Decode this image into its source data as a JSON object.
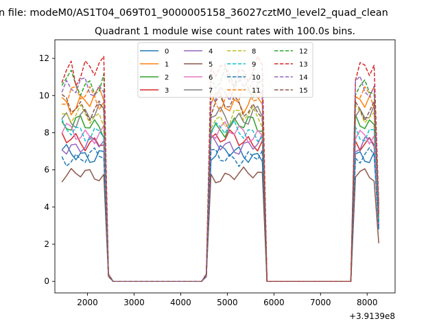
{
  "figure": {
    "suptitle": "n file: modeM0/AS1T04_069T01_9000005158_36027cztM0_level2_quad_clean",
    "offset_label": "+3.9139e8"
  },
  "chart_data": {
    "type": "line",
    "title": "Quadrant 1 module wise count rates with 100.0s bins.",
    "xlabel": "",
    "ylabel": "",
    "xlim": [
      1300,
      8600
    ],
    "ylim": [
      -0.62,
      13.0
    ],
    "xticks": [
      2000,
      3000,
      4000,
      5000,
      6000,
      7000,
      8000
    ],
    "yticks": [
      0,
      2,
      4,
      6,
      8,
      10,
      12
    ],
    "legend_position": "top-center",
    "legend_columns": 4,
    "x": [
      1450,
      1550,
      1650,
      1750,
      1850,
      1950,
      2050,
      2150,
      2250,
      2350,
      2450,
      2550,
      2650,
      2750,
      2850,
      2950,
      3050,
      3150,
      3250,
      3350,
      3450,
      3550,
      3650,
      3750,
      3850,
      3950,
      4050,
      4150,
      4250,
      4350,
      4450,
      4550,
      4650,
      4750,
      4850,
      4950,
      5050,
      5150,
      5250,
      5350,
      5450,
      5550,
      5650,
      5750,
      5850,
      5950,
      6050,
      6150,
      6250,
      6350,
      6450,
      6550,
      6650,
      6750,
      6850,
      6950,
      7050,
      7150,
      7250,
      7350,
      7450,
      7550,
      7650,
      7750,
      7850,
      7950,
      8050,
      8150,
      8250
    ],
    "active_ranges": [
      [
        1450,
        2350
      ],
      [
        4650,
        5750
      ],
      [
        7750,
        8150
      ]
    ],
    "series": [
      {
        "name": "0",
        "color": "#1f77b4",
        "dash": "solid",
        "level": 6.85,
        "edge": [
          0.3,
          2.8
        ]
      },
      {
        "name": "1",
        "color": "#ff7f0e",
        "dash": "solid",
        "level": 9.7,
        "edge": [
          0.35,
          3.6
        ]
      },
      {
        "name": "2",
        "color": "#2ca02c",
        "dash": "solid",
        "level": 8.35,
        "edge": [
          0.35,
          3.2
        ]
      },
      {
        "name": "3",
        "color": "#d62728",
        "dash": "solid",
        "level": 7.6,
        "edge": [
          0.3,
          3.0
        ]
      },
      {
        "name": "4",
        "color": "#9467bd",
        "dash": "solid",
        "level": 7.35,
        "edge": [
          0.3,
          3.0
        ]
      },
      {
        "name": "5",
        "color": "#8c564b",
        "dash": "solid",
        "level": 5.7,
        "edge": [
          0.25,
          2.05
        ]
      },
      {
        "name": "6",
        "color": "#e377c2",
        "dash": "solid",
        "level": 8.0,
        "edge": [
          0.3,
          3.1
        ]
      },
      {
        "name": "7",
        "color": "#7f7f7f",
        "dash": "solid",
        "level": 8.9,
        "edge": [
          0.35,
          3.3
        ]
      },
      {
        "name": "8",
        "color": "#bcbd22",
        "dash": "dashed",
        "level": 8.8,
        "edge": [
          0.35,
          3.3
        ]
      },
      {
        "name": "9",
        "color": "#17becf",
        "dash": "dashed",
        "level": 8.1,
        "edge": [
          0.3,
          3.1
        ]
      },
      {
        "name": "10",
        "color": "#1f77b4",
        "dash": "dashed",
        "level": 6.7,
        "edge": [
          0.3,
          2.8
        ]
      },
      {
        "name": "11",
        "color": "#ff7f0e",
        "dash": "dashed",
        "level": 9.9,
        "edge": [
          0.35,
          3.7
        ]
      },
      {
        "name": "12",
        "color": "#2ca02c",
        "dash": "dashed",
        "level": 10.7,
        "edge": [
          0.4,
          4.0
        ]
      },
      {
        "name": "13",
        "color": "#d62728",
        "dash": "dashed",
        "level": 11.3,
        "edge": [
          0.4,
          4.2
        ]
      },
      {
        "name": "14",
        "color": "#9467bd",
        "dash": "dashed",
        "level": 10.3,
        "edge": [
          0.35,
          3.8
        ]
      },
      {
        "name": "15",
        "color": "#8c564b",
        "dash": "dashed",
        "level": 9.4,
        "edge": [
          0.35,
          3.5
        ]
      }
    ]
  }
}
